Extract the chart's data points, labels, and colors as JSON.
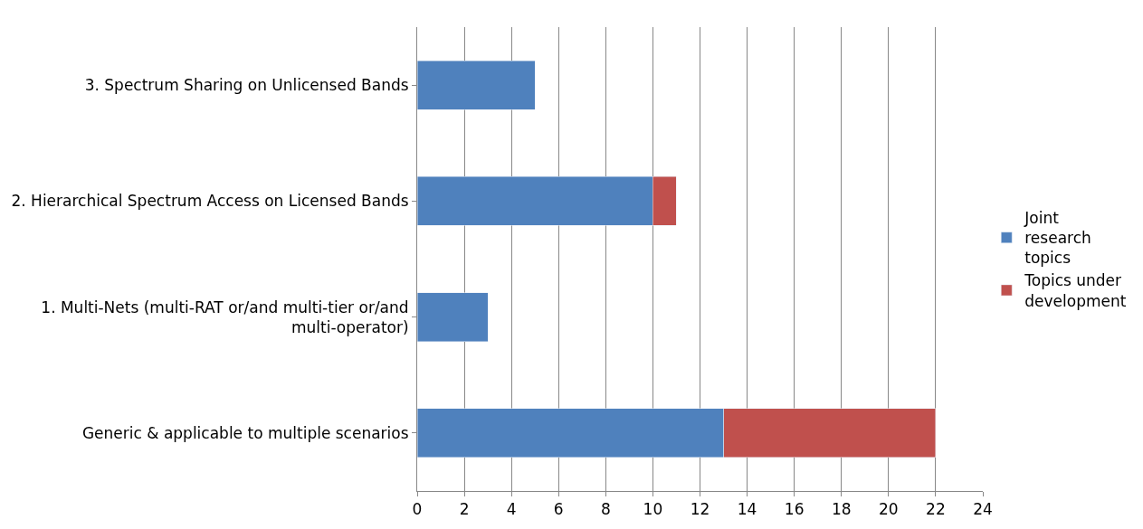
{
  "chart_data": {
    "type": "bar",
    "orientation": "horizontal",
    "stacked": true,
    "categories": [
      "3. Spectrum Sharing on Unlicensed Bands",
      "2. Hierarchical Spectrum Access on Licensed Bands",
      "1. Multi-Nets (multi-RAT or/and multi-tier or/and multi-operator)",
      "Generic & applicable to multiple scenarios"
    ],
    "series": [
      {
        "name": "Joint research topics",
        "color": "#4f81bd",
        "values": [
          5,
          10,
          3,
          13
        ]
      },
      {
        "name": "Topics under development",
        "color": "#c0504d",
        "values": [
          null,
          1,
          null,
          9
        ]
      }
    ],
    "xlim": [
      0,
      24
    ],
    "xticks": [
      0,
      2,
      4,
      6,
      8,
      10,
      12,
      14,
      16,
      18,
      20,
      22,
      24
    ],
    "grid": "x",
    "legend": "right"
  }
}
